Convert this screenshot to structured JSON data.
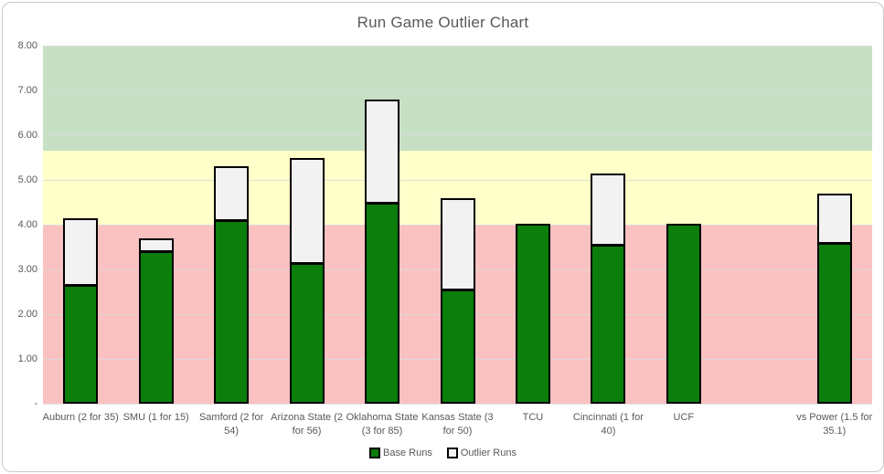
{
  "title": "Run Game Outlier Chart",
  "colors": {
    "base_fill": "#0b7e0c",
    "outlier_fill": "#f2f2f2",
    "bar_border": "#000000",
    "text": "#595959",
    "gridline": "#d9d9d9",
    "chart_border": "#c9c9c9"
  },
  "chart_data": {
    "type": "bar",
    "stacked": true,
    "title": "Run Game Outlier Chart",
    "categories": [
      "Auburn (2 for 35)",
      "SMU (1 for 15)",
      "Samford (2 for 54)",
      "Arizona State (2 for 56)",
      "Oklahoma State (3 for 85)",
      "Kansas State (3 for 50)",
      "TCU",
      "Cincinnati (1 for 40)",
      "UCF",
      "",
      "vs Power (1.5 for 35.1)"
    ],
    "series": [
      {
        "name": "Base Runs",
        "color": "#0b7e0c",
        "values": [
          2.65,
          3.4,
          4.1,
          3.15,
          4.5,
          2.55,
          4.02,
          3.55,
          4.03,
          0,
          3.6
        ]
      },
      {
        "name": "Outlier Runs",
        "color": "#f2f2f2",
        "values": [
          1.5,
          0.3,
          1.2,
          2.35,
          2.3,
          2.05,
          0,
          1.6,
          0,
          0,
          1.1
        ]
      }
    ],
    "totals": [
      4.15,
      3.7,
      5.3,
      5.5,
      6.8,
      4.6,
      4.02,
      5.15,
      4.03,
      0,
      4.7
    ],
    "xlabel": "",
    "ylabel": "",
    "ylim": [
      0,
      8
    ],
    "yticks": [
      0,
      1,
      2,
      3,
      4,
      5,
      6,
      7,
      8
    ],
    "ytick_labels": [
      "-",
      "1.00",
      "2.00",
      "3.00",
      "4.00",
      "5.00",
      "6.00",
      "7.00",
      "8.00"
    ],
    "grid": true,
    "bands": [
      {
        "name": "red-zone",
        "from": 0,
        "to": 4.0,
        "color": "#fac1c1"
      },
      {
        "name": "yellow-zone",
        "from": 4.0,
        "to": 5.65,
        "color": "#ffffc9"
      },
      {
        "name": "green-zone",
        "from": 5.65,
        "to": 8.0,
        "color": "#c7e0c5"
      }
    ],
    "legend": {
      "position": "bottom",
      "entries": [
        {
          "label": "Base Runs",
          "swatch": "#0b7e0c"
        },
        {
          "label": "Outlier Runs",
          "swatch": "#f2f2f2"
        }
      ]
    }
  }
}
